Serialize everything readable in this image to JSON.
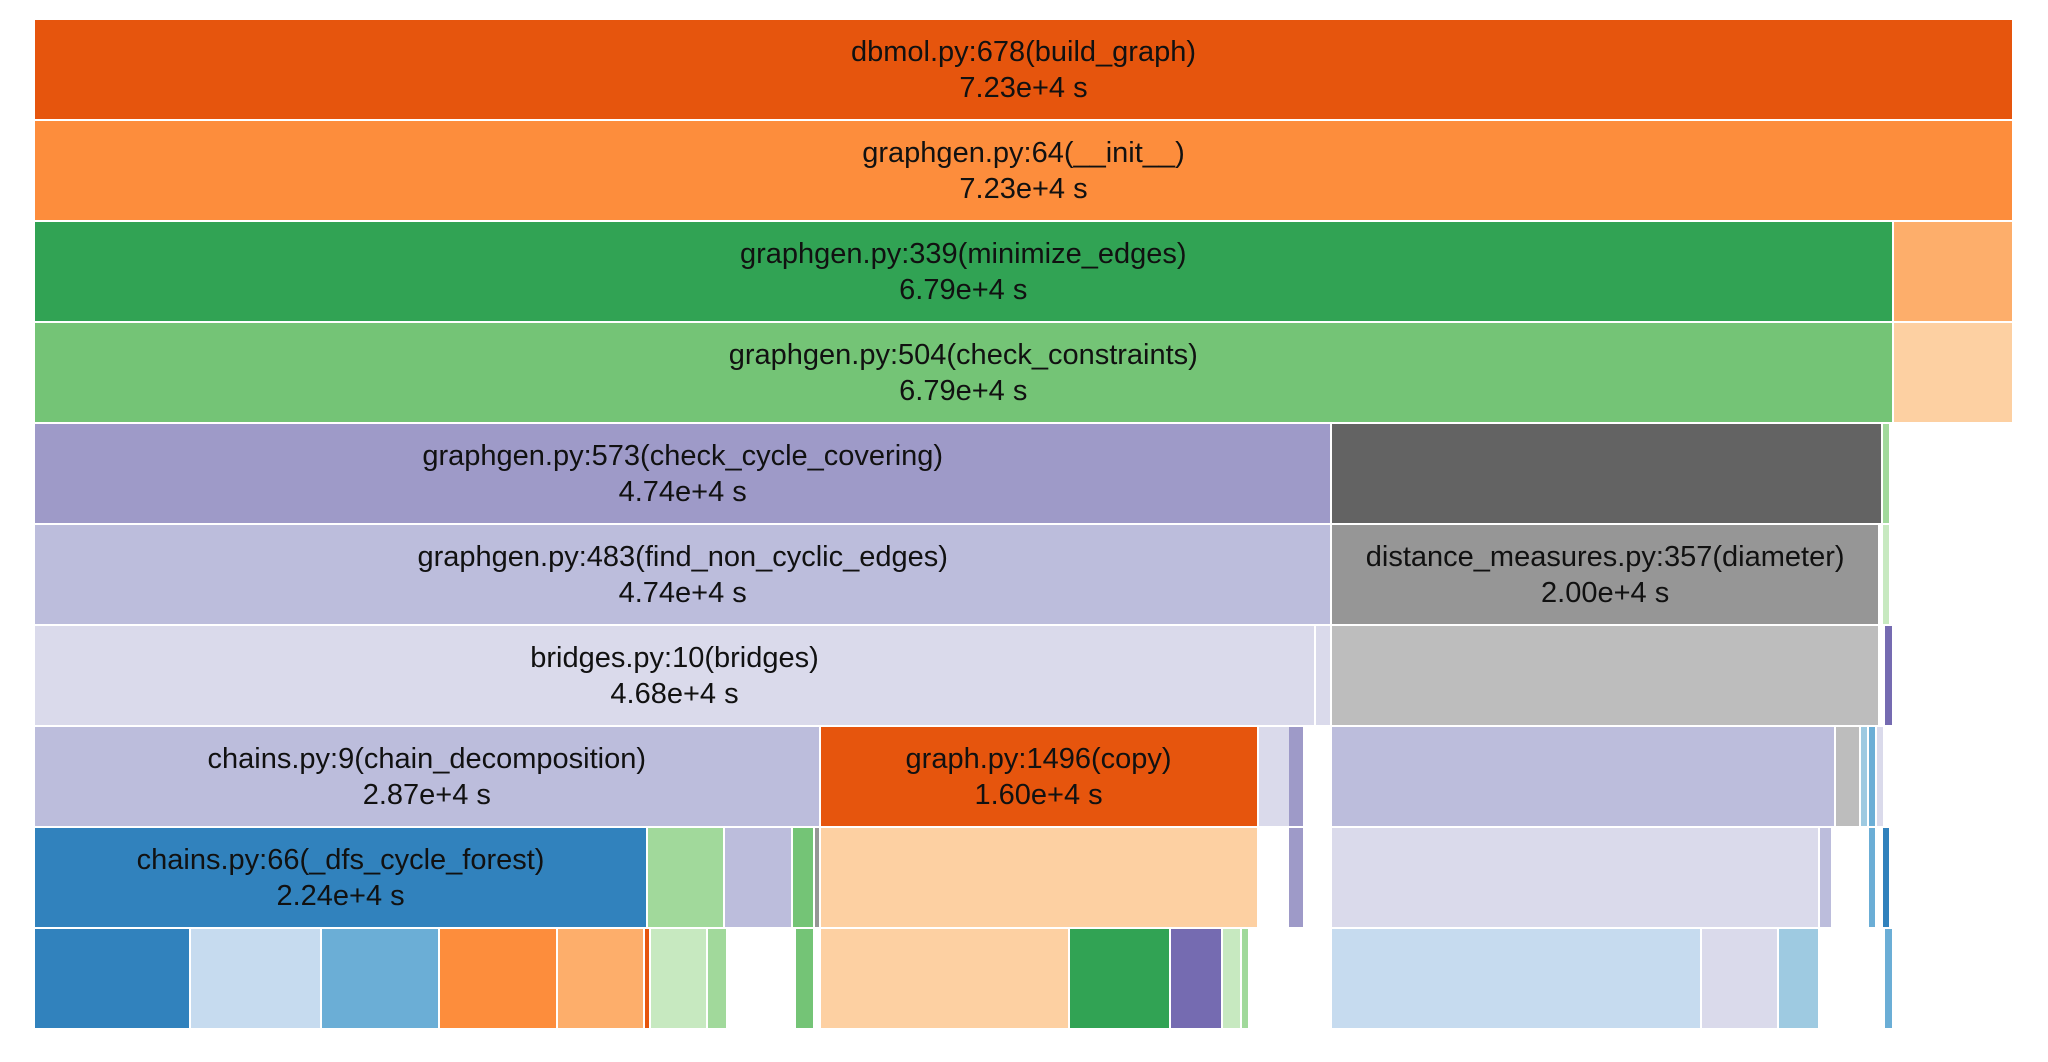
{
  "chart_data": {
    "type": "icicle",
    "title": "",
    "unit": "s",
    "levels": 10,
    "total": 72300,
    "frames": [
      {
        "id": "build_graph",
        "label": "dbmol.py:678(build_graph)",
        "time": "7.23e+4 s",
        "level": 0,
        "start": 0,
        "value": 72300,
        "color": "#e6550d"
      },
      {
        "id": "graphgen_init",
        "label": "graphgen.py:64(__init__)",
        "time": "7.23e+4 s",
        "level": 1,
        "start": 0,
        "value": 72300,
        "color": "#fd8d3c"
      },
      {
        "id": "minimize_edges",
        "label": "graphgen.py:339(minimize_edges)",
        "time": "6.79e+4 s",
        "level": 2,
        "start": 0,
        "value": 67900,
        "color": "#31a354"
      },
      {
        "id": "init_other",
        "level": 2,
        "start": 67900,
        "value": 4400,
        "color": "#fdae6b"
      },
      {
        "id": "check_constraints",
        "label": "graphgen.py:504(check_constraints)",
        "time": "6.79e+4 s",
        "level": 3,
        "start": 0,
        "value": 67900,
        "color": "#74c476"
      },
      {
        "id": "init_other2",
        "level": 3,
        "start": 67900,
        "value": 4400,
        "color": "#fdd0a2"
      },
      {
        "id": "check_cycle_covering",
        "label": "graphgen.py:573(check_cycle_covering)",
        "time": "4.74e+4 s",
        "level": 4,
        "start": 0,
        "value": 47400,
        "color": "#9e9ac8"
      },
      {
        "id": "dark_block",
        "level": 4,
        "start": 47400,
        "value": 20100,
        "color": "#636363"
      },
      {
        "id": "cc_tiny",
        "level": 4,
        "start": 67500,
        "value": 300,
        "color": "#a1d99b"
      },
      {
        "id": "find_non_cyclic_edges",
        "label": "graphgen.py:483(find_non_cyclic_edges)",
        "time": "4.74e+4 s",
        "level": 5,
        "start": 0,
        "value": 47400,
        "color": "#bcbddc"
      },
      {
        "id": "diameter",
        "label": "distance_measures.py:357(diameter)",
        "time": "2.00e+4 s",
        "level": 5,
        "start": 47400,
        "value": 20000,
        "color": "#969696"
      },
      {
        "id": "fnc_tiny",
        "level": 5,
        "start": 67500,
        "value": 300,
        "color": "#c7e9c0"
      },
      {
        "id": "bridges",
        "label": "bridges.py:10(bridges)",
        "time": "4.68e+4 s",
        "level": 6,
        "start": 0,
        "value": 46800,
        "color": "#dadaeb"
      },
      {
        "id": "br_small",
        "level": 6,
        "start": 46800,
        "value": 600,
        "color": "#dadaeb"
      },
      {
        "id": "grey_block",
        "level": 6,
        "start": 47400,
        "value": 20000,
        "color": "#bdbdbd"
      },
      {
        "id": "br_purple",
        "level": 6,
        "start": 67600,
        "value": 300,
        "color": "#756bb1"
      },
      {
        "id": "chain_decomposition",
        "label": "chains.py:9(chain_decomposition)",
        "time": "2.87e+4 s",
        "level": 7,
        "start": 0,
        "value": 28700,
        "color": "#bcbddc"
      },
      {
        "id": "copy",
        "label": "graph.py:1496(copy)",
        "time": "1.60e+4 s",
        "level": 7,
        "start": 28700,
        "value": 16000,
        "color": "#e6550d"
      },
      {
        "id": "cd_small1",
        "level": 7,
        "start": 44700,
        "value": 1600,
        "color": "#dadaeb"
      },
      {
        "id": "cd_small2",
        "level": 7,
        "start": 45800,
        "value": 600,
        "color": "#9e9ac8"
      },
      {
        "id": "cd_sub1",
        "level": 7,
        "start": 47400,
        "value": 18400,
        "color": "#bcbddc"
      },
      {
        "id": "cd_sub2",
        "level": 7,
        "start": 65800,
        "value": 900,
        "color": "#bdbdbd"
      },
      {
        "id": "cd_sub3",
        "level": 7,
        "start": 66700,
        "value": 300,
        "color": "#9ecae1"
      },
      {
        "id": "cd_sub4",
        "level": 7,
        "start": 67000,
        "value": 300,
        "color": "#6baed6"
      },
      {
        "id": "cd_sub5",
        "level": 7,
        "start": 67300,
        "value": 300,
        "color": "#dadaeb"
      },
      {
        "id": "dfs_cycle_forest",
        "label": "chains.py:66(_dfs_cycle_forest)",
        "time": "2.24e+4 s",
        "level": 8,
        "start": 0,
        "value": 22400,
        "color": "#3182bd"
      },
      {
        "id": "l8_green",
        "level": 8,
        "start": 22400,
        "value": 2800,
        "color": "#a1d99b"
      },
      {
        "id": "l8_lav",
        "level": 8,
        "start": 25200,
        "value": 2500,
        "color": "#bcbddc"
      },
      {
        "id": "l8_green2",
        "level": 8,
        "start": 27700,
        "value": 800,
        "color": "#74c476"
      },
      {
        "id": "l8_grey",
        "level": 8,
        "start": 28500,
        "value": 200,
        "color": "#969696"
      },
      {
        "id": "l8_peach",
        "level": 8,
        "start": 28700,
        "value": 16000,
        "color": "#fdd0a2"
      },
      {
        "id": "l8_purp",
        "level": 8,
        "start": 45800,
        "value": 600,
        "color": "#9e9ac8"
      },
      {
        "id": "l8_lav2",
        "level": 8,
        "start": 47400,
        "value": 17800,
        "color": "#dadaeb"
      },
      {
        "id": "l8_lav3",
        "level": 8,
        "start": 65200,
        "value": 500,
        "color": "#bcbddc"
      },
      {
        "id": "l8_blue",
        "level": 8,
        "start": 67000,
        "value": 300,
        "color": "#6baed6"
      },
      {
        "id": "l8_blue2",
        "level": 8,
        "start": 67500,
        "value": 300,
        "color": "#3182bd"
      },
      {
        "id": "l9_a",
        "level": 9,
        "start": 0,
        "value": 5700,
        "color": "#3182bd"
      },
      {
        "id": "l9_b",
        "level": 9,
        "start": 5700,
        "value": 4800,
        "color": "#c6dbef"
      },
      {
        "id": "l9_c",
        "level": 9,
        "start": 10500,
        "value": 4300,
        "color": "#6baed6"
      },
      {
        "id": "l9_d",
        "level": 9,
        "start": 14800,
        "value": 4300,
        "color": "#fd8d3c"
      },
      {
        "id": "l9_e",
        "level": 9,
        "start": 19100,
        "value": 3200,
        "color": "#fdae6b"
      },
      {
        "id": "l9_f",
        "level": 9,
        "start": 22300,
        "value": 200,
        "color": "#e6550d"
      },
      {
        "id": "l9_g",
        "level": 9,
        "start": 22500,
        "value": 2100,
        "color": "#c7e9c0"
      },
      {
        "id": "l9_h",
        "level": 9,
        "start": 24600,
        "value": 700,
        "color": "#a1d99b"
      },
      {
        "id": "l9_i",
        "level": 9,
        "start": 27800,
        "value": 700,
        "color": "#74c476"
      },
      {
        "id": "l9_j",
        "level": 9,
        "start": 28700,
        "value": 9100,
        "color": "#fdd0a2"
      },
      {
        "id": "l9_k",
        "level": 9,
        "start": 37800,
        "value": 3700,
        "color": "#31a354"
      },
      {
        "id": "l9_l",
        "level": 9,
        "start": 41500,
        "value": 1900,
        "color": "#756bb1"
      },
      {
        "id": "l9_m",
        "level": 9,
        "start": 43400,
        "value": 700,
        "color": "#c7e9c0"
      },
      {
        "id": "l9_n",
        "level": 9,
        "start": 44100,
        "value": 300,
        "color": "#a1d99b"
      },
      {
        "id": "l9_o",
        "level": 9,
        "start": 47400,
        "value": 13500,
        "color": "#c6dbef"
      },
      {
        "id": "l9_p",
        "level": 9,
        "start": 60900,
        "value": 2800,
        "color": "#dadaeb"
      },
      {
        "id": "l9_q",
        "level": 9,
        "start": 63700,
        "value": 1500,
        "color": "#9ecae1"
      },
      {
        "id": "l9_r",
        "level": 9,
        "start": 67600,
        "value": 300,
        "color": "#6baed6"
      }
    ]
  }
}
